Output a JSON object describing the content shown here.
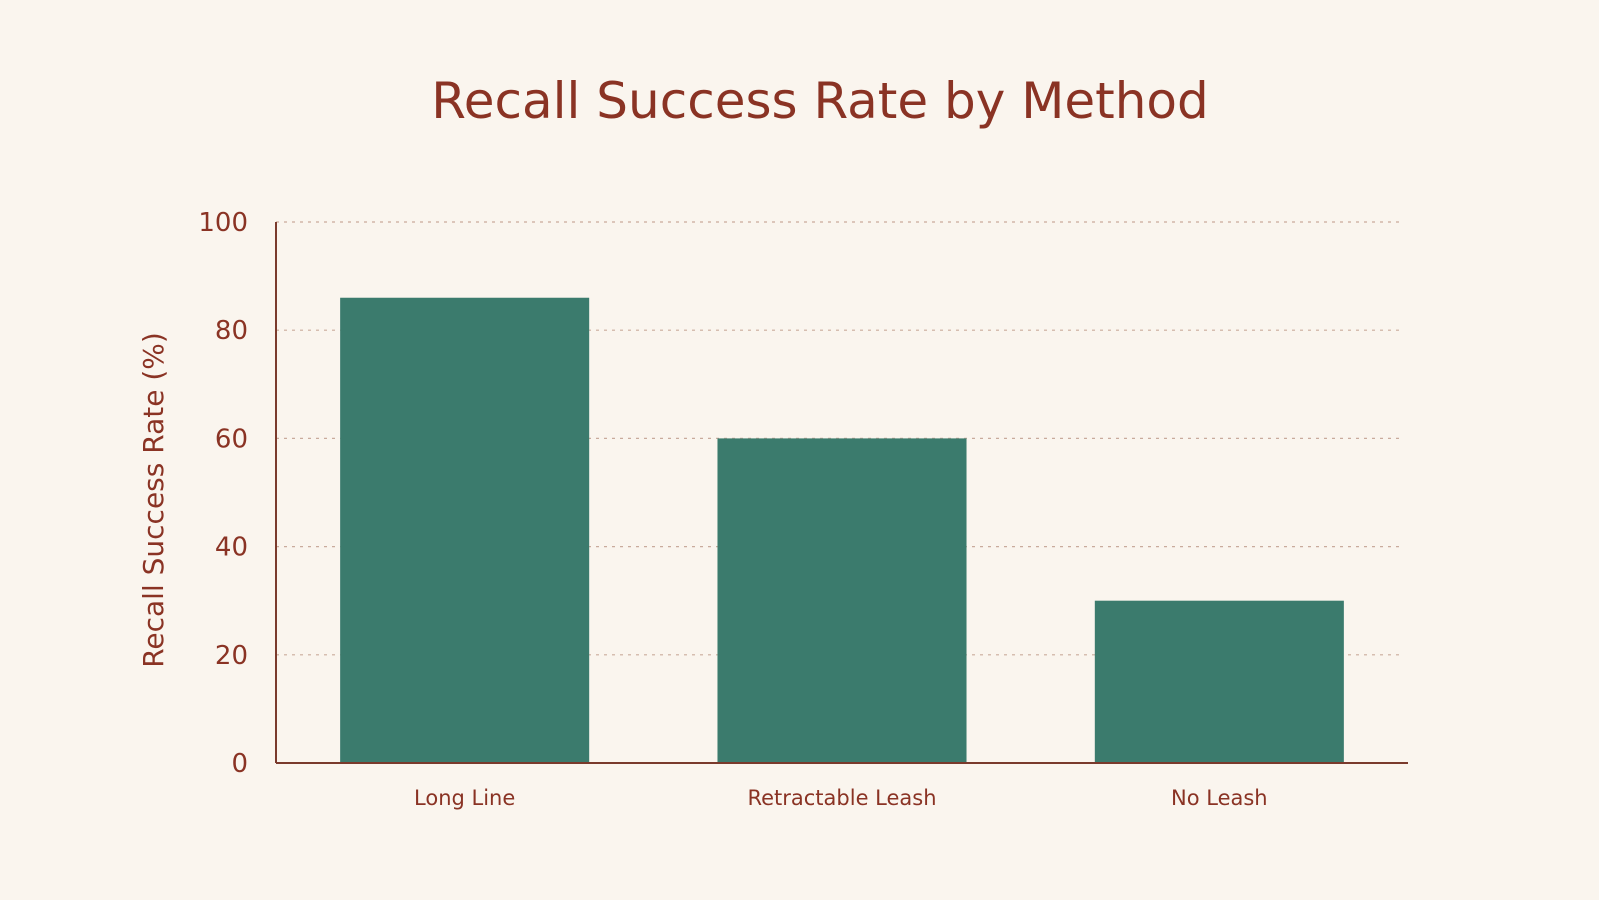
{
  "chart_data": {
    "type": "bar",
    "title": "Recall Success Rate by Method",
    "xlabel": "",
    "ylabel": "Recall Success Rate (%)",
    "categories": [
      "Long Line",
      "Retractable Leash",
      "No Leash"
    ],
    "values": [
      86,
      60,
      30
    ],
    "ylim": [
      0,
      100
    ],
    "yticks": [
      0,
      20,
      40,
      60,
      80,
      100
    ],
    "grid": true,
    "legend": "none",
    "colors": {
      "bar": "#3b7b6d",
      "text": "#8a3324",
      "background": "#faf5ee",
      "grid": "#c9ab9c"
    }
  }
}
